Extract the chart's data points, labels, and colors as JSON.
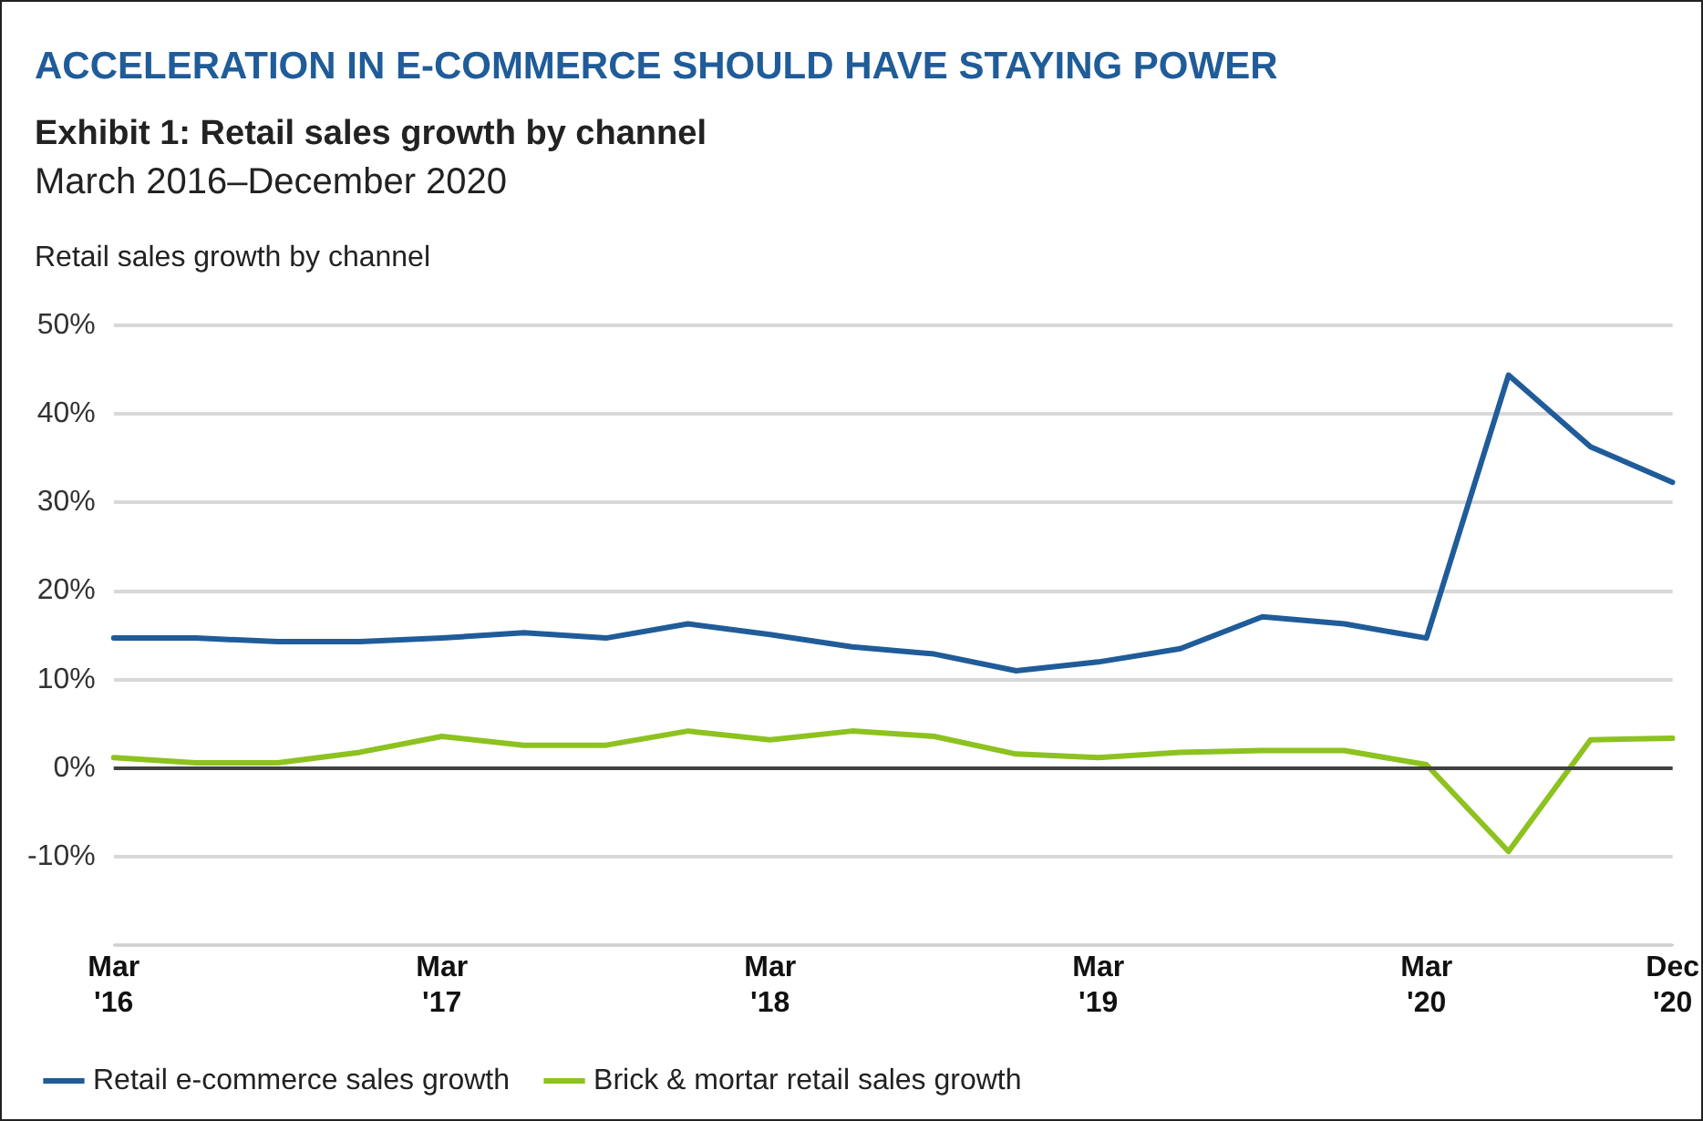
{
  "chart_data": {
    "type": "line",
    "title": "ACCELERATION IN E-COMMERCE SHOULD HAVE STAYING POWER",
    "subtitle": "Exhibit 1: Retail sales growth by channel\nMarch 2016–December 2020",
    "ylabel": "Retail sales growth by channel",
    "categories": [
      "Mar '16",
      null,
      null,
      null,
      "Mar '17",
      null,
      null,
      null,
      "Mar '18",
      null,
      null,
      null,
      "Mar '19",
      null,
      null,
      null,
      "Mar '20",
      null,
      null,
      "Dec '20"
    ],
    "series": [
      {
        "name": "Retail e-commerce sales growth",
        "color": "#1f5c99",
        "values": [
          14.7,
          14.7,
          14.3,
          14.3,
          14.7,
          15.3,
          14.7,
          16.3,
          15.1,
          13.7,
          12.9,
          11.0,
          12.0,
          13.5,
          17.1,
          16.3,
          14.7,
          44.4,
          36.3,
          32.3
        ]
      },
      {
        "name": "Brick & mortar retail sales growth",
        "color": "#8dc21f",
        "values": [
          1.2,
          0.6,
          0.6,
          1.8,
          3.6,
          2.6,
          2.6,
          4.2,
          3.2,
          4.2,
          3.6,
          1.6,
          1.2,
          1.8,
          2.0,
          2.0,
          0.4,
          -9.4,
          3.2,
          3.4
        ]
      }
    ],
    "ylim": [
      -20,
      50
    ],
    "yticks": [
      {
        "value": -20,
        "label": null
      },
      {
        "value": -10,
        "label": "-10%"
      },
      {
        "value": 0,
        "label": "0%"
      },
      {
        "value": 10,
        "label": "10%"
      },
      {
        "value": 20,
        "label": "20%"
      },
      {
        "value": 30,
        "label": "30%"
      },
      {
        "value": 40,
        "label": "40%"
      },
      {
        "value": 50,
        "label": "50%"
      }
    ],
    "ref_lines": [
      {
        "axis": "y",
        "value": 0,
        "color": "#404040"
      }
    ],
    "grid": "y",
    "legend": "bottom",
    "marker": "none",
    "line_style": "solid"
  }
}
